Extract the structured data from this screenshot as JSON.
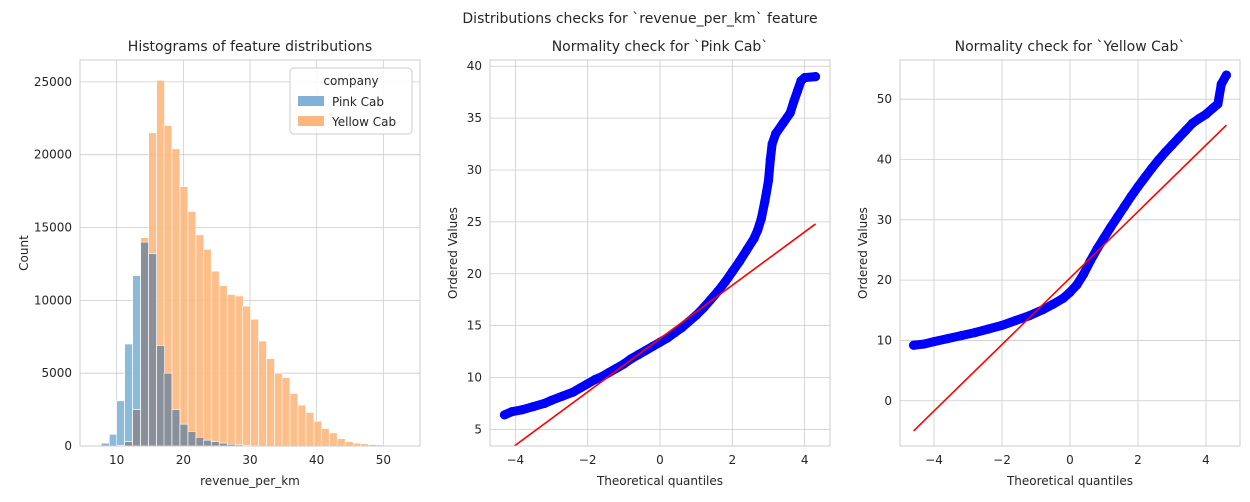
{
  "figure": {
    "suptitle": "Distributions checks for `revenue_per_km` feature"
  },
  "chart_data": [
    {
      "type": "histogram",
      "title": "Histograms of feature distributions",
      "xlabel": "revenue_per_km",
      "ylabel": "Count",
      "xlim": [
        4.5,
        55.5
      ],
      "ylim": [
        0,
        26500
      ],
      "xticks": [
        10,
        20,
        30,
        40,
        50
      ],
      "yticks": [
        0,
        5000,
        10000,
        15000,
        20000,
        25000
      ],
      "grid": true,
      "bin_width": 1.18,
      "legend": {
        "title": "company",
        "placement": "top-right"
      },
      "series": [
        {
          "name": "Pink Cab",
          "color": "#7fb2d5",
          "bins": [
            [
              6.5,
              30
            ],
            [
              7.7,
              200
            ],
            [
              8.9,
              800
            ],
            [
              10.0,
              3100
            ],
            [
              11.2,
              7000
            ],
            [
              12.4,
              11700
            ],
            [
              13.6,
              14000
            ],
            [
              14.8,
              13200
            ],
            [
              16.0,
              6900
            ],
            [
              17.1,
              5000
            ],
            [
              18.3,
              2500
            ],
            [
              19.5,
              1500
            ],
            [
              20.7,
              1000
            ],
            [
              21.9,
              600
            ],
            [
              23.0,
              400
            ],
            [
              24.2,
              300
            ],
            [
              25.4,
              200
            ],
            [
              26.6,
              120
            ],
            [
              27.8,
              80
            ],
            [
              28.9,
              50
            ],
            [
              30.1,
              30
            ],
            [
              31.3,
              20
            ],
            [
              32.5,
              15
            ],
            [
              33.7,
              10
            ],
            [
              34.8,
              8
            ],
            [
              36.0,
              5
            ],
            [
              37.2,
              4
            ],
            [
              38.4,
              3
            ]
          ]
        },
        {
          "name": "Yellow Cab",
          "color": "#fdb77c",
          "bins": [
            [
              8.9,
              10
            ],
            [
              10.0,
              50
            ],
            [
              11.2,
              300
            ],
            [
              12.4,
              2500
            ],
            [
              13.6,
              14300
            ],
            [
              14.8,
              21500
            ],
            [
              16.0,
              25100
            ],
            [
              17.1,
              22000
            ],
            [
              18.3,
              20400
            ],
            [
              19.5,
              17800
            ],
            [
              20.7,
              16100
            ],
            [
              21.9,
              14500
            ],
            [
              23.0,
              13500
            ],
            [
              24.2,
              12000
            ],
            [
              25.4,
              11000
            ],
            [
              26.6,
              10400
            ],
            [
              27.8,
              10300
            ],
            [
              28.9,
              9600
            ],
            [
              30.1,
              8700
            ],
            [
              31.3,
              7200
            ],
            [
              32.5,
              6000
            ],
            [
              33.7,
              5000
            ],
            [
              34.8,
              4700
            ],
            [
              36.0,
              3600
            ],
            [
              37.2,
              2800
            ],
            [
              38.4,
              2300
            ],
            [
              39.6,
              1700
            ],
            [
              40.7,
              1200
            ],
            [
              41.9,
              900
            ],
            [
              43.1,
              500
            ],
            [
              44.3,
              300
            ],
            [
              45.5,
              200
            ],
            [
              46.6,
              150
            ],
            [
              47.8,
              100
            ],
            [
              49.0,
              70
            ],
            [
              50.2,
              50
            ],
            [
              51.3,
              30
            ],
            [
              52.5,
              20
            ]
          ]
        }
      ]
    },
    {
      "type": "scatter",
      "title": "Normality check for `Pink Cab`",
      "xlabel": "Theoretical quantiles",
      "ylabel": "Ordered Values",
      "xlim": [
        -4.7,
        4.7
      ],
      "ylim": [
        3.4,
        40.6
      ],
      "xticks": [
        -4,
        -2,
        0,
        2,
        4
      ],
      "yticks": [
        5,
        10,
        15,
        20,
        25,
        30,
        35,
        40
      ],
      "grid": true,
      "points_color": "#0000ff",
      "line_color": "#ff0000",
      "fit_line": [
        [
          -4.3,
          2.7
        ],
        [
          4.3,
          24.8
        ]
      ],
      "points": [
        [
          -4.3,
          6.4
        ],
        [
          -4.1,
          6.7
        ],
        [
          -3.8,
          6.9
        ],
        [
          -3.5,
          7.2
        ],
        [
          -3.2,
          7.5
        ],
        [
          -3.0,
          7.8
        ],
        [
          -2.7,
          8.2
        ],
        [
          -2.4,
          8.6
        ],
        [
          -2.2,
          9.0
        ],
        [
          -2.0,
          9.4
        ],
        [
          -1.8,
          9.8
        ],
        [
          -1.6,
          10.1
        ],
        [
          -1.4,
          10.5
        ],
        [
          -1.2,
          10.9
        ],
        [
          -1.0,
          11.3
        ],
        [
          -0.8,
          11.8
        ],
        [
          -0.6,
          12.2
        ],
        [
          -0.4,
          12.6
        ],
        [
          -0.2,
          13.0
        ],
        [
          0.0,
          13.4
        ],
        [
          0.2,
          13.8
        ],
        [
          0.4,
          14.3
        ],
        [
          0.6,
          14.8
        ],
        [
          0.8,
          15.4
        ],
        [
          1.0,
          16.0
        ],
        [
          1.2,
          16.7
        ],
        [
          1.4,
          17.5
        ],
        [
          1.6,
          18.3
        ],
        [
          1.8,
          19.2
        ],
        [
          2.0,
          20.2
        ],
        [
          2.2,
          21.2
        ],
        [
          2.4,
          22.3
        ],
        [
          2.6,
          23.4
        ],
        [
          2.7,
          24.2
        ],
        [
          2.8,
          25.3
        ],
        [
          2.9,
          27.0
        ],
        [
          3.0,
          29.0
        ],
        [
          3.05,
          31.0
        ],
        [
          3.1,
          32.5
        ],
        [
          3.2,
          33.5
        ],
        [
          3.4,
          34.5
        ],
        [
          3.6,
          35.5
        ],
        [
          3.7,
          36.6
        ],
        [
          3.8,
          37.6
        ],
        [
          3.9,
          38.6
        ],
        [
          4.0,
          38.9
        ],
        [
          4.3,
          39.0
        ]
      ]
    },
    {
      "type": "scatter",
      "title": "Normality check for `Yellow Cab`",
      "xlabel": "Theoretical quantiles",
      "ylabel": "Ordered Values",
      "xlim": [
        -5.0,
        5.0
      ],
      "ylim": [
        -7.5,
        56.5
      ],
      "xticks": [
        -4,
        -2,
        0,
        2,
        4
      ],
      "yticks": [
        0,
        10,
        20,
        30,
        40,
        50
      ],
      "grid": true,
      "points_color": "#0000ff",
      "line_color": "#ff0000",
      "fit_line": [
        [
          -4.6,
          -5.0
        ],
        [
          4.6,
          45.7
        ]
      ],
      "points": [
        [
          -4.6,
          9.2
        ],
        [
          -4.3,
          9.4
        ],
        [
          -4.0,
          9.8
        ],
        [
          -3.6,
          10.3
        ],
        [
          -3.2,
          10.8
        ],
        [
          -2.8,
          11.3
        ],
        [
          -2.4,
          11.9
        ],
        [
          -2.0,
          12.5
        ],
        [
          -1.6,
          13.3
        ],
        [
          -1.2,
          14.1
        ],
        [
          -0.8,
          15.1
        ],
        [
          -0.5,
          16.0
        ],
        [
          -0.2,
          17.0
        ],
        [
          0.0,
          18.0
        ],
        [
          0.2,
          19.2
        ],
        [
          0.4,
          21.0
        ],
        [
          0.6,
          23.2
        ],
        [
          0.8,
          25.2
        ],
        [
          1.0,
          27.0
        ],
        [
          1.2,
          28.8
        ],
        [
          1.4,
          30.5
        ],
        [
          1.6,
          32.2
        ],
        [
          1.8,
          33.9
        ],
        [
          2.0,
          35.5
        ],
        [
          2.2,
          37.0
        ],
        [
          2.4,
          38.5
        ],
        [
          2.6,
          39.9
        ],
        [
          2.8,
          41.2
        ],
        [
          3.0,
          42.4
        ],
        [
          3.2,
          43.6
        ],
        [
          3.4,
          44.8
        ],
        [
          3.6,
          46.0
        ],
        [
          3.8,
          46.8
        ],
        [
          4.0,
          47.5
        ],
        [
          4.2,
          48.5
        ],
        [
          4.35,
          49.2
        ],
        [
          4.45,
          52.5
        ],
        [
          4.6,
          54.0
        ]
      ]
    }
  ]
}
